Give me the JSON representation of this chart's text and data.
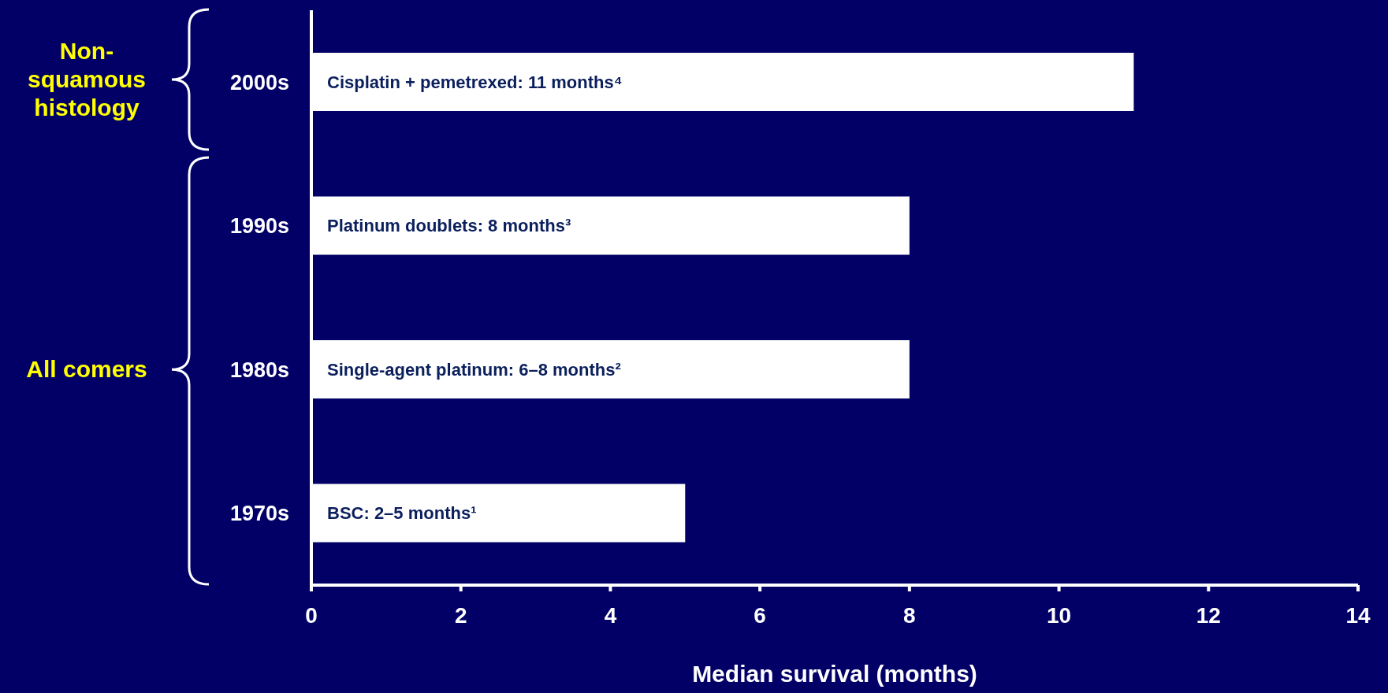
{
  "chart_data": {
    "type": "bar",
    "orientation": "horizontal",
    "categories": [
      "2000s",
      "1990s",
      "1980s",
      "1970s"
    ],
    "values": [
      11,
      8,
      8,
      5
    ],
    "color": "#ffffff",
    "value_labels": [
      "Cisplatin + pemetrexed: 11 months⁴",
      "Platinum doublets: 8 months³",
      "Single-agent platinum: 6–8 months²",
      "BSC: 2–5 months¹"
    ],
    "xlim": [
      0,
      14
    ],
    "xticks": [
      0,
      2,
      4,
      6,
      8,
      10,
      12,
      14
    ],
    "xlabel": "Median survival (months)",
    "annotations": [
      "Non-squamous histology",
      "All comers"
    ]
  }
}
